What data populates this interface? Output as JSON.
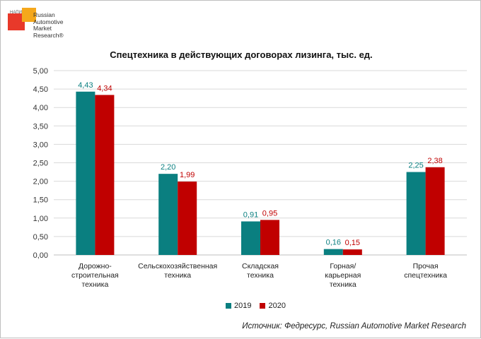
{
  "logo": {
    "small_text": "НАПИ",
    "name": "Russian\nAutomotive\nMarket\nResearch®"
  },
  "source": "Источник: Федресурс, Russian Automotive Market Research",
  "chart_data": {
    "type": "bar",
    "title": "Спецтехника в действующих договорах лизинга, тыс. ед.",
    "categories": [
      [
        "Дорожно-",
        "строительная",
        "техника"
      ],
      [
        "Сельскохозяйственная",
        "техника"
      ],
      [
        "Складская",
        "техника"
      ],
      [
        "Горная/",
        "карьерная",
        "техника"
      ],
      [
        "Прочая",
        "спецтехника"
      ]
    ],
    "series": [
      {
        "name": "2019",
        "color": "#0a7f80",
        "label_color": "#0a7f80",
        "values": [
          4.43,
          2.2,
          0.91,
          0.16,
          2.25
        ],
        "labels": [
          "4,43",
          "2,20",
          "0,91",
          "0,16",
          "2,25"
        ]
      },
      {
        "name": "2020",
        "color": "#c00000",
        "label_color": "#c00000",
        "values": [
          4.34,
          1.99,
          0.95,
          0.15,
          2.38
        ],
        "labels": [
          "4,34",
          "1,99",
          "0,95",
          "0,15",
          "2,38"
        ]
      }
    ],
    "ylim": [
      0,
      5
    ],
    "yticks": [
      0,
      0.5,
      1,
      1.5,
      2,
      2.5,
      3,
      3.5,
      4,
      4.5,
      5
    ],
    "ytick_labels": [
      "0,00",
      "0,50",
      "1,00",
      "1,50",
      "2,00",
      "2,50",
      "3,00",
      "3,50",
      "4,00",
      "4,50",
      "5,00"
    ],
    "grid": true,
    "legend_position": "bottom"
  }
}
